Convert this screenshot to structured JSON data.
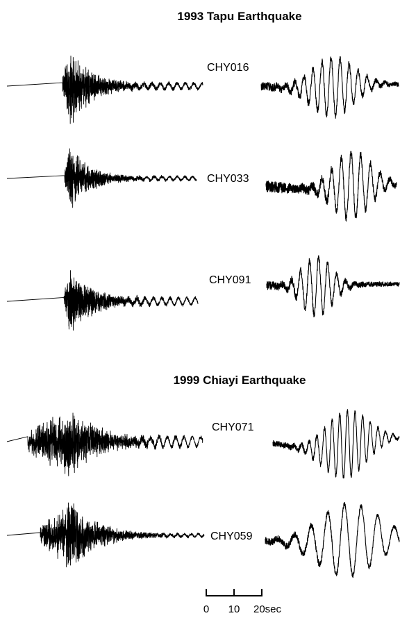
{
  "panels": [
    {
      "title": "1993 Tapu Earthquake",
      "stations": [
        {
          "name": "CHY016"
        },
        {
          "name": "CHY033"
        },
        {
          "name": "CHY091"
        }
      ]
    },
    {
      "title": "1999 Chiayi Earthquake",
      "stations": [
        {
          "name": "CHY071"
        },
        {
          "name": "CHY059"
        }
      ]
    }
  ],
  "scale_bar": {
    "ticks": [
      "0",
      "10",
      "20sec"
    ]
  },
  "colors": {
    "trace": "#000000",
    "background": "#ffffff"
  }
}
